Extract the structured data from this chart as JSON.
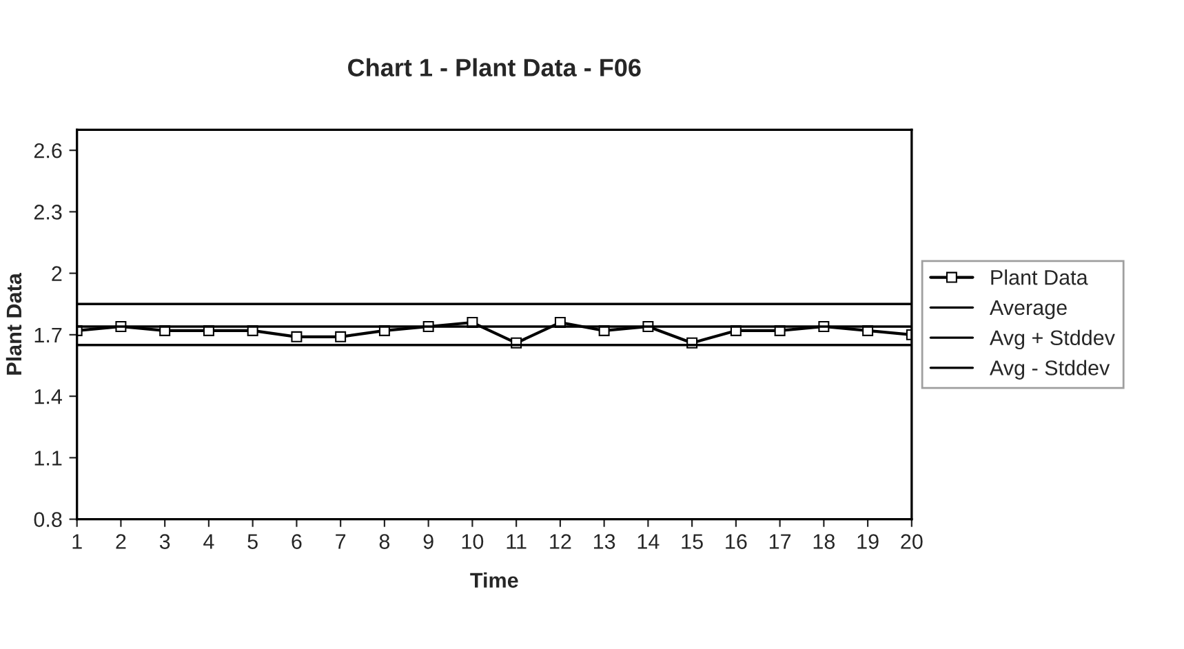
{
  "chart_data": {
    "type": "line",
    "title": "Chart 1 - Plant Data - F06",
    "xlabel": "Time",
    "ylabel": "Plant Data",
    "x": [
      1,
      2,
      3,
      4,
      5,
      6,
      7,
      8,
      9,
      10,
      11,
      12,
      13,
      14,
      15,
      16,
      17,
      18,
      19,
      20
    ],
    "xlim": [
      1,
      20
    ],
    "xticks": [
      1,
      2,
      3,
      4,
      5,
      6,
      7,
      8,
      9,
      10,
      11,
      12,
      13,
      14,
      15,
      16,
      17,
      18,
      19,
      20
    ],
    "ylim": [
      0.8,
      2.7
    ],
    "yticks": [
      0.8,
      1.1,
      1.4,
      1.7,
      2,
      2.3,
      2.6
    ],
    "grid": false,
    "legend": "right",
    "series": [
      {
        "name": "Plant Data",
        "color": "#000000",
        "marker": "square",
        "values": [
          1.72,
          1.74,
          1.72,
          1.72,
          1.72,
          1.69,
          1.69,
          1.72,
          1.74,
          1.76,
          1.66,
          1.76,
          1.72,
          1.74,
          1.66,
          1.72,
          1.72,
          1.74,
          1.72,
          1.7
        ]
      },
      {
        "name": "Average",
        "color": "#000000",
        "marker": "none",
        "values": [
          1.74,
          1.74,
          1.74,
          1.74,
          1.74,
          1.74,
          1.74,
          1.74,
          1.74,
          1.74,
          1.74,
          1.74,
          1.74,
          1.74,
          1.74,
          1.74,
          1.74,
          1.74,
          1.74,
          1.74
        ]
      },
      {
        "name": "Avg + Stddev",
        "color": "#000000",
        "marker": "none",
        "values": [
          1.85,
          1.85,
          1.85,
          1.85,
          1.85,
          1.85,
          1.85,
          1.85,
          1.85,
          1.85,
          1.85,
          1.85,
          1.85,
          1.85,
          1.85,
          1.85,
          1.85,
          1.85,
          1.85,
          1.85
        ]
      },
      {
        "name": "Avg - Stddev",
        "color": "#000000",
        "marker": "none",
        "values": [
          1.65,
          1.65,
          1.65,
          1.65,
          1.65,
          1.65,
          1.65,
          1.65,
          1.65,
          1.65,
          1.65,
          1.65,
          1.65,
          1.65,
          1.65,
          1.65,
          1.65,
          1.65,
          1.65,
          1.65
        ]
      }
    ]
  }
}
